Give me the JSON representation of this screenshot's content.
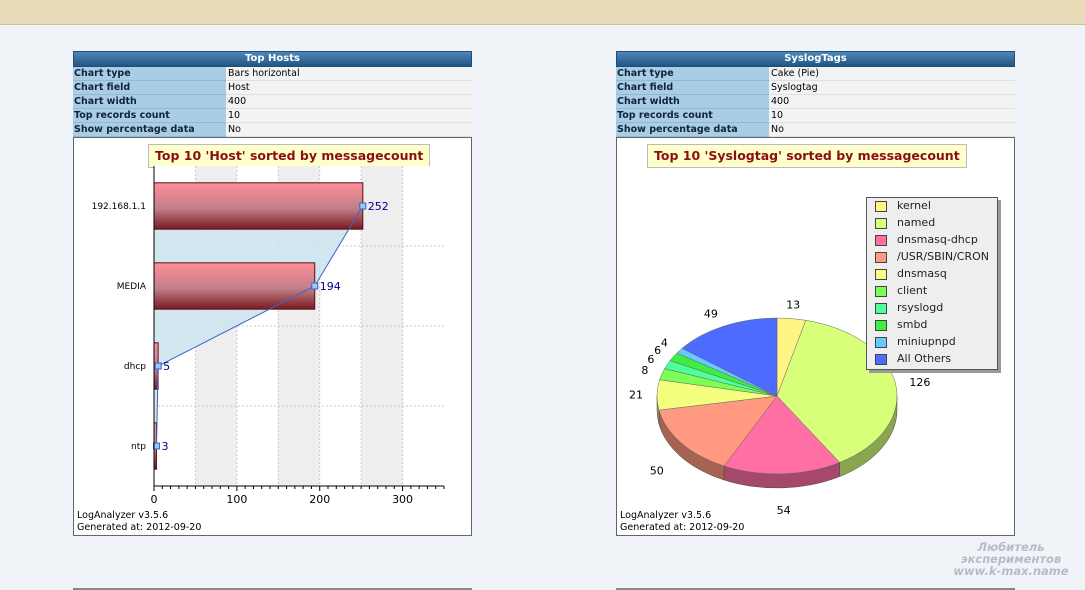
{
  "header": {
    "text": ""
  },
  "top_hosts": {
    "panel_title": "Top Hosts",
    "props": [
      {
        "key": "Chart type",
        "value": "Bars horizontal"
      },
      {
        "key": "Chart field",
        "value": "Host"
      },
      {
        "key": "Chart width",
        "value": "400"
      },
      {
        "key": "Top records count",
        "value": "10"
      },
      {
        "key": "Show percentage data",
        "value": "No"
      }
    ],
    "footer_version": "LogAnalyzer v3.5.6",
    "footer_generated": "Generated at: 2012-09-20"
  },
  "syslog_tags": {
    "panel_title": "SyslogTags",
    "props": [
      {
        "key": "Chart type",
        "value": "Cake (Pie)"
      },
      {
        "key": "Chart field",
        "value": "Syslogtag"
      },
      {
        "key": "Chart width",
        "value": "400"
      },
      {
        "key": "Top records count",
        "value": "10"
      },
      {
        "key": "Show percentage data",
        "value": "No"
      }
    ],
    "footer_version": "LogAnalyzer v3.5.6",
    "footer_generated": "Generated at: 2012-09-20"
  },
  "watermark": {
    "line1": "Любитель",
    "line2": "экспериментов",
    "line3": "www.k-max.name"
  },
  "chart_data": [
    {
      "type": "bar",
      "orientation": "horizontal",
      "title": "Top 10 'Host' sorted by messagecount",
      "categories": [
        "192.168.1.1",
        "MEDIA",
        "dhcp",
        "ntp"
      ],
      "values": [
        252,
        194,
        5,
        3
      ],
      "xlim": [
        0,
        350
      ],
      "x_ticks": [
        0,
        100,
        200,
        300
      ],
      "grid": true,
      "colors": {
        "bar": "#d06a74",
        "bar_dark": "#7a1a22",
        "fill": "#cfe4ee",
        "line": "#3b62c8",
        "label": "#000088"
      }
    },
    {
      "type": "pie",
      "title": "Top 10 'Syslogtag' sorted by messagecount",
      "labels": [
        "kernel",
        "named",
        "dnsmasq-dhcp",
        "/USR/SBIN/CRON",
        "dnsmasq",
        "client",
        "rsyslogd",
        "smbd",
        "miniupnpd",
        "All Others"
      ],
      "values": [
        13,
        126,
        54,
        50,
        21,
        8,
        6,
        6,
        4,
        49
      ],
      "value_labels": [
        "13",
        "126",
        "54",
        "50",
        "21",
        "8",
        "6",
        "6",
        "4",
        "49"
      ],
      "colors": [
        "#fff585",
        "#d8ff7a",
        "#ff6fa3",
        "#ff9980",
        "#f4ff80",
        "#7cff55",
        "#4fff9b",
        "#3ef03e",
        "#66c9ff",
        "#4d6bff"
      ],
      "legend_position": "top-right"
    }
  ]
}
